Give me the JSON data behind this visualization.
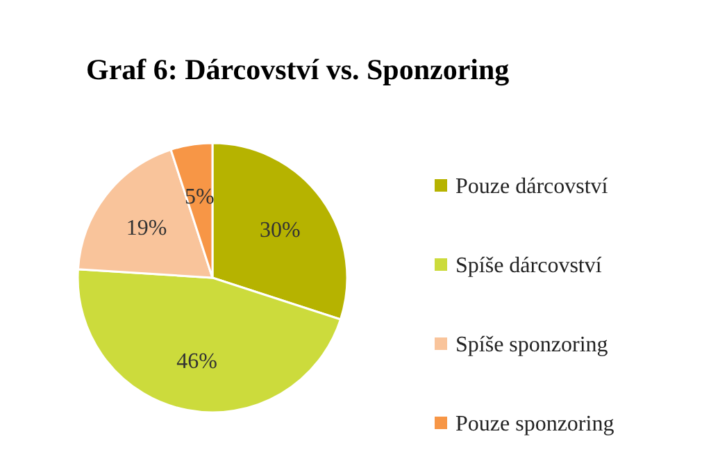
{
  "chart_data": {
    "type": "pie",
    "title": "Graf 6: Dárcovství vs. Sponzoring",
    "categories": [
      "Pouze dárcovství",
      "Spíše dárcovství",
      "Spíše sponzoring",
      "Pouze sponzoring"
    ],
    "values": [
      30,
      46,
      19,
      5
    ],
    "colors": [
      "#b6b300",
      "#ccdb3c",
      "#f9c49b",
      "#f79646"
    ],
    "value_labels": [
      "30%",
      "46%",
      "19%",
      "5%"
    ],
    "legend": "right"
  }
}
